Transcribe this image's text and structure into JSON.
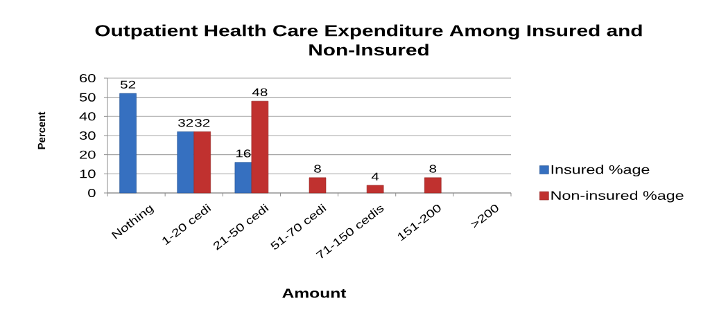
{
  "chart_data": {
    "type": "bar",
    "title": "Outpatient Health Care Expenditure Among Insured and Non-Insured",
    "xlabel": "Amount",
    "ylabel": "Percent",
    "categories": [
      "Nothing",
      "1-20 cedi",
      "21-50 cedi",
      "51-70 cedi",
      "71-150 cedis",
      "151-200",
      ">200"
    ],
    "series": [
      {
        "name": "Insured %age",
        "color": "#3670c0",
        "values": [
          52,
          32,
          16,
          null,
          null,
          null,
          null
        ]
      },
      {
        "name": "Non-insured %age",
        "color": "#c0312f",
        "values": [
          null,
          32,
          48,
          8,
          4,
          8,
          null
        ]
      }
    ],
    "ylim": [
      0,
      60
    ],
    "yticks": [
      0,
      10,
      20,
      30,
      40,
      50,
      60
    ],
    "grid": "y",
    "legend": "right",
    "data_labels": true
  }
}
